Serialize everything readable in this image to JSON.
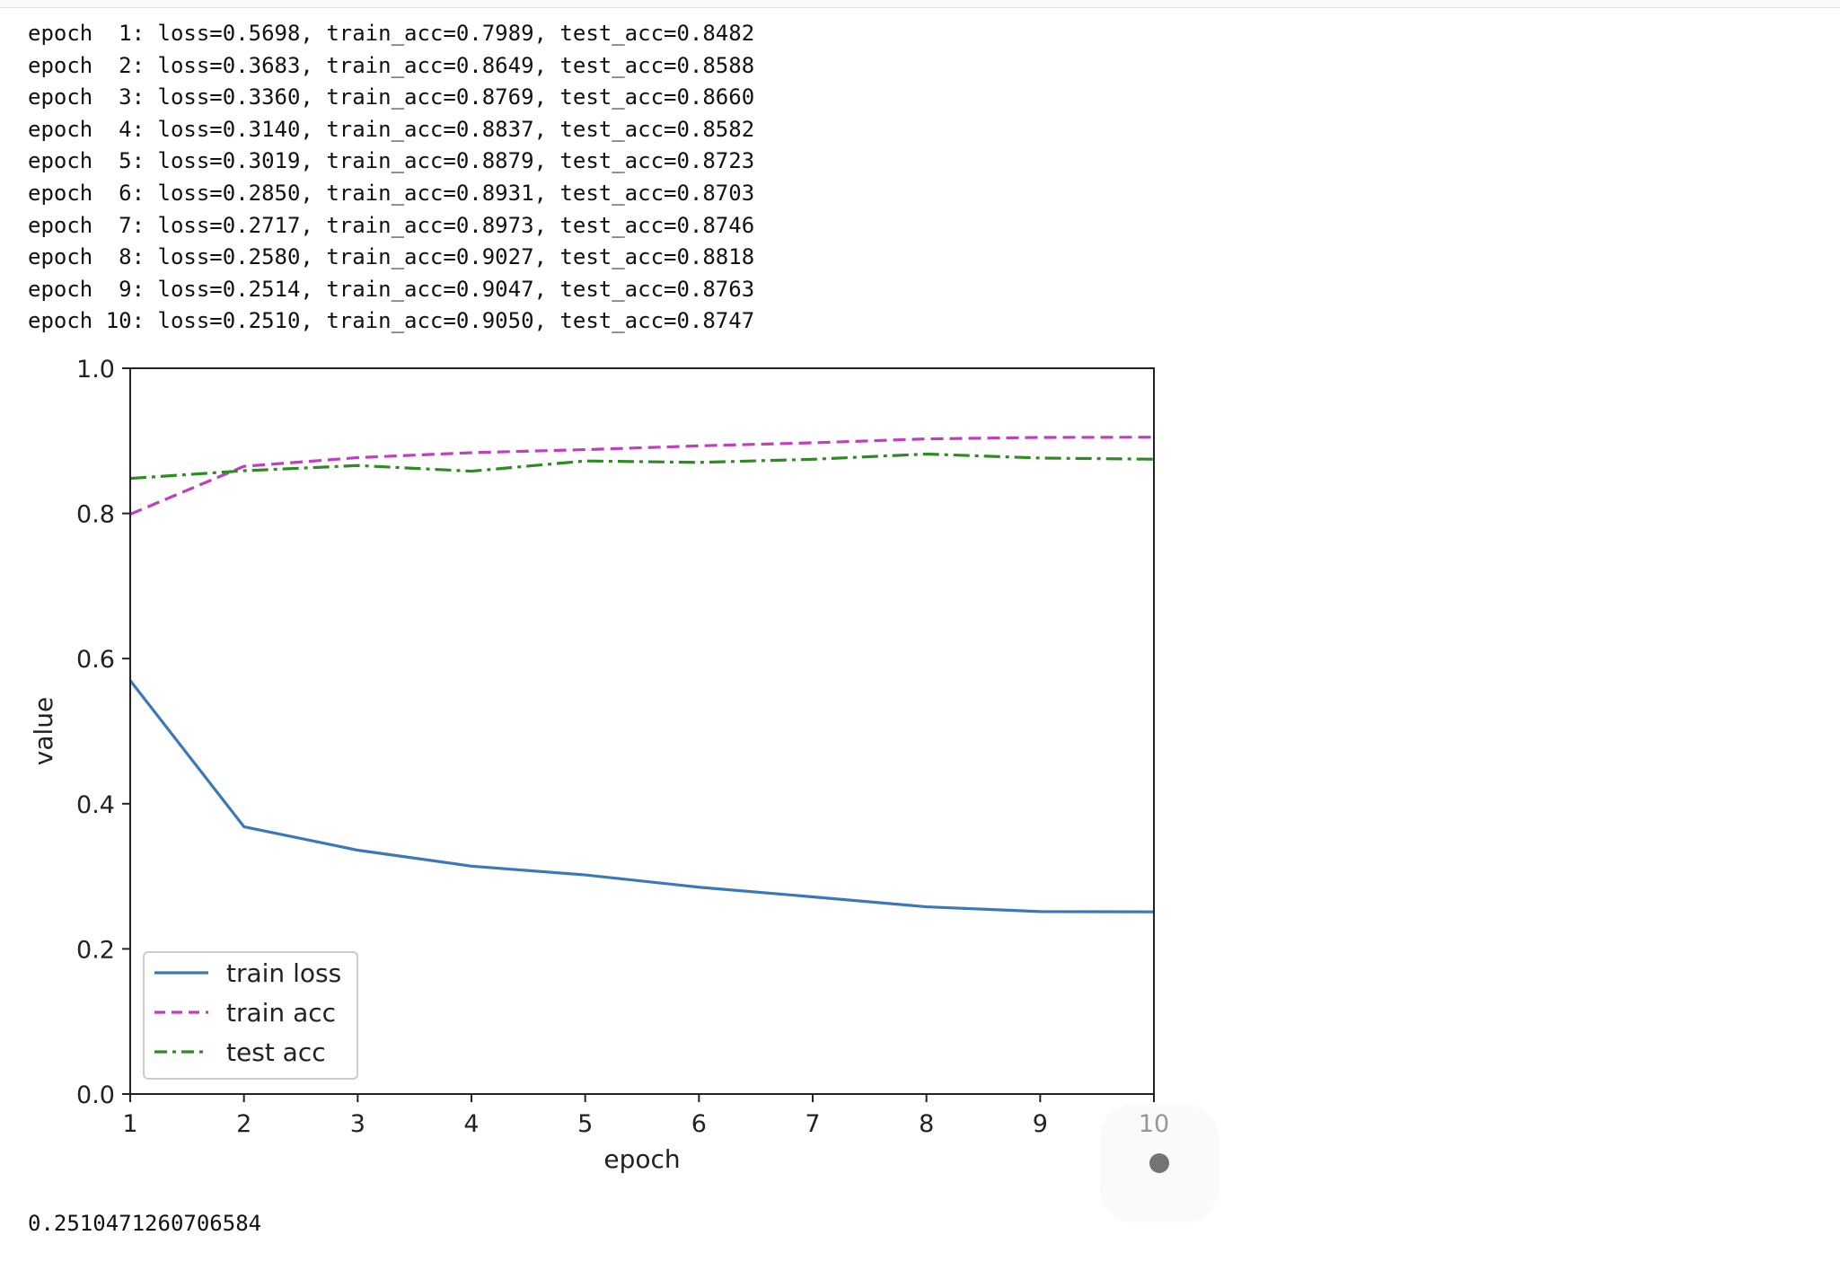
{
  "log_lines": [
    "epoch  1: loss=0.5698, train_acc=0.7989, test_acc=0.8482",
    "epoch  2: loss=0.3683, train_acc=0.8649, test_acc=0.8588",
    "epoch  3: loss=0.3360, train_acc=0.8769, test_acc=0.8660",
    "epoch  4: loss=0.3140, train_acc=0.8837, test_acc=0.8582",
    "epoch  5: loss=0.3019, train_acc=0.8879, test_acc=0.8723",
    "epoch  6: loss=0.2850, train_acc=0.8931, test_acc=0.8703",
    "epoch  7: loss=0.2717, train_acc=0.8973, test_acc=0.8746",
    "epoch  8: loss=0.2580, train_acc=0.9027, test_acc=0.8818",
    "epoch  9: loss=0.2514, train_acc=0.9047, test_acc=0.8763",
    "epoch 10: loss=0.2510, train_acc=0.9050, test_acc=0.8747"
  ],
  "result_value": "0.2510471260706584",
  "chart_data": {
    "type": "line",
    "title": "",
    "xlabel": "epoch",
    "ylabel": "value",
    "x": [
      1,
      2,
      3,
      4,
      5,
      6,
      7,
      8,
      9,
      10
    ],
    "xticks": [
      "1",
      "2",
      "3",
      "4",
      "5",
      "6",
      "7",
      "8",
      "9",
      "10"
    ],
    "yticks": [
      "0.0",
      "0.2",
      "0.4",
      "0.6",
      "0.8",
      "1.0"
    ],
    "xlim": [
      1,
      10
    ],
    "ylim": [
      0,
      1.0
    ],
    "grid": false,
    "legend_position": "lower-left",
    "series": [
      {
        "name": "train loss",
        "color": "#3b78b8",
        "dash": "solid",
        "values": [
          0.5698,
          0.3683,
          0.336,
          0.314,
          0.3019,
          0.285,
          0.2717,
          0.258,
          0.2514,
          0.251
        ]
      },
      {
        "name": "train acc",
        "color": "#bf3fbf",
        "dash": "dashed",
        "values": [
          0.7989,
          0.8649,
          0.8769,
          0.8837,
          0.8879,
          0.8931,
          0.8973,
          0.9027,
          0.9047,
          0.905
        ]
      },
      {
        "name": "test acc",
        "color": "#2e8b22",
        "dash": "dashdot",
        "values": [
          0.8482,
          0.8588,
          0.866,
          0.8582,
          0.8723,
          0.8703,
          0.8746,
          0.8818,
          0.8763,
          0.8747
        ]
      }
    ]
  }
}
